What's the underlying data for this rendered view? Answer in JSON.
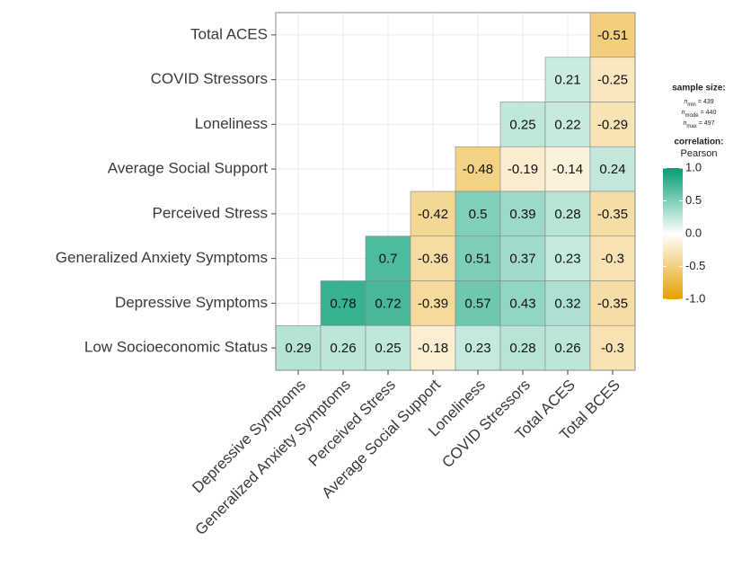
{
  "chart_data": {
    "type": "heatmap",
    "x_categories": [
      "Depressive Symptoms",
      "Generalized Anxiety Symptoms",
      "Perceived Stress",
      "Average Social Support",
      "Loneliness",
      "COVID Stressors",
      "Total ACES",
      "Total BCES"
    ],
    "y_categories": [
      "Total ACES",
      "COVID Stressors",
      "Loneliness",
      "Average Social Support",
      "Perceived Stress",
      "Generalized Anxiety Symptoms",
      "Depressive Symptoms",
      "Low Socioeconomic Status"
    ],
    "values": [
      [
        null,
        null,
        null,
        null,
        null,
        null,
        null,
        -0.51
      ],
      [
        null,
        null,
        null,
        null,
        null,
        null,
        0.21,
        -0.25
      ],
      [
        null,
        null,
        null,
        null,
        null,
        0.25,
        0.22,
        -0.29
      ],
      [
        null,
        null,
        null,
        null,
        -0.48,
        -0.19,
        -0.14,
        0.24
      ],
      [
        null,
        null,
        null,
        -0.42,
        0.5,
        0.39,
        0.28,
        -0.35
      ],
      [
        null,
        null,
        0.7,
        -0.36,
        0.51,
        0.37,
        0.23,
        -0.3
      ],
      [
        null,
        0.78,
        0.72,
        -0.39,
        0.57,
        0.43,
        0.32,
        -0.35
      ],
      [
        0.29,
        0.26,
        0.25,
        -0.18,
        0.23,
        0.28,
        0.26,
        -0.3
      ]
    ],
    "grid": true,
    "colors": {
      "low": "#E69F00",
      "mid": "#ffffff",
      "high": "#009E73"
    },
    "color_lim": [
      -1,
      1
    ],
    "color_ticks": [
      {
        "value": 1,
        "label": "1.0"
      },
      0.5,
      {
        "value": 0,
        "label": "0.0"
      },
      -0.5,
      {
        "value": -1,
        "label": "-1.0"
      }
    ],
    "legend": {
      "sample_title": "sample size:",
      "sample_sizes": [
        {
          "symbol": "n",
          "sub": "min",
          "eq": "=",
          "value": 439
        },
        {
          "symbol": "n",
          "sub": "mode",
          "eq": "=",
          "value": 440
        },
        {
          "symbol": "n",
          "sub": "max",
          "eq": "=",
          "value": 497
        }
      ],
      "color_title": "correlation:",
      "color_subtitle": "Pearson"
    }
  }
}
